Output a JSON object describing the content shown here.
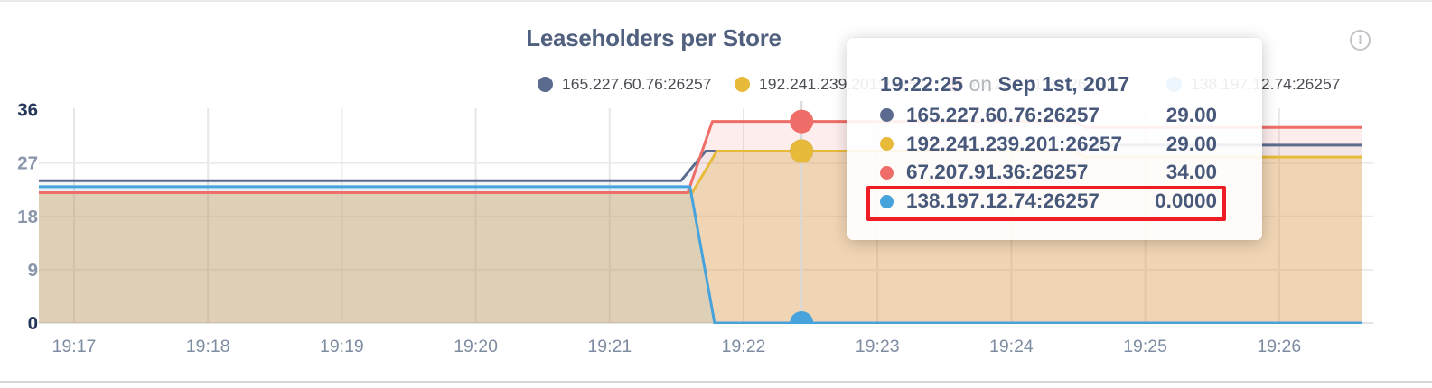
{
  "header": {
    "title": "Leaseholders per Store",
    "info_icon_glyph": "!"
  },
  "legend": {
    "items": [
      {
        "label": "165.227.60.76:26257",
        "color": "#5b6b8f"
      },
      {
        "label": "192.241.239.201:26257",
        "color": "#e8ba3a"
      },
      {
        "label": "67.207.91.36:26257",
        "color": "#ee6d68"
      },
      {
        "label": "138.197.12.74:26257",
        "color": "#47a3dc"
      }
    ]
  },
  "tooltip": {
    "time": "19:22:25",
    "on_word": "on",
    "date": "Sep 1st, 2017",
    "rows": [
      {
        "label": "165.227.60.76:26257",
        "value": "29.00",
        "color": "#5b6b8f",
        "highlighted": false
      },
      {
        "label": "192.241.239.201:26257",
        "value": "29.00",
        "color": "#e8ba3a",
        "highlighted": false
      },
      {
        "label": "67.207.91.36:26257",
        "value": "34.00",
        "color": "#ee6d68",
        "highlighted": false
      },
      {
        "label": "138.197.12.74:26257",
        "value": "0.0000",
        "color": "#47a3dc",
        "highlighted": true
      }
    ]
  },
  "chart_data": {
    "type": "area",
    "title": "Leaseholders per Store",
    "xlabel": "",
    "ylabel": "",
    "ylim": [
      0,
      36
    ],
    "y_ticks": [
      36,
      27,
      18,
      9,
      0
    ],
    "y_tick_dark": [
      36,
      0
    ],
    "x_ticks": [
      {
        "t": 0,
        "label": "19:17"
      },
      {
        "t": 60,
        "label": "19:18"
      },
      {
        "t": 120,
        "label": "19:19"
      },
      {
        "t": 180,
        "label": "19:20"
      },
      {
        "t": 240,
        "label": "19:21"
      },
      {
        "t": 300,
        "label": "19:22"
      },
      {
        "t": 360,
        "label": "19:23"
      },
      {
        "t": 420,
        "label": "19:24"
      },
      {
        "t": 480,
        "label": "19:25"
      },
      {
        "t": 540,
        "label": "19:26"
      }
    ],
    "t_range": [
      -16,
      577
    ],
    "grid": true,
    "legend_position": "top",
    "series": [
      {
        "name": "165.227.60.76:26257",
        "color": "#5b6b8f",
        "fill_opacity": 0.06,
        "points": [
          [
            -16,
            24
          ],
          [
            272,
            24
          ],
          [
            283,
            29
          ],
          [
            448,
            29
          ],
          [
            453,
            30
          ],
          [
            577,
            30
          ]
        ]
      },
      {
        "name": "192.241.239.201:26257",
        "color": "#e8ba3a",
        "fill_opacity": 0.3,
        "points": [
          [
            -16,
            22
          ],
          [
            277,
            22
          ],
          [
            288,
            29
          ],
          [
            448,
            29
          ],
          [
            453,
            28
          ],
          [
            577,
            28
          ]
        ]
      },
      {
        "name": "67.207.91.36:26257",
        "color": "#ee6d68",
        "fill_opacity": 0.12,
        "points": [
          [
            -16,
            22
          ],
          [
            275,
            22
          ],
          [
            286,
            34
          ],
          [
            448,
            34
          ],
          [
            453,
            33
          ],
          [
            577,
            33
          ]
        ]
      },
      {
        "name": "138.197.12.74:26257",
        "color": "#47a3dc",
        "fill_opacity": 0.1,
        "points": [
          [
            -16,
            23
          ],
          [
            276,
            23
          ],
          [
            287,
            0
          ],
          [
            577,
            0
          ]
        ]
      }
    ],
    "hover": {
      "t": 326,
      "time_label": "19:22:25",
      "markers": [
        {
          "series": "165.227.60.76:26257",
          "value": 29,
          "color": "#5b6b8f"
        },
        {
          "series": "192.241.239.201:26257",
          "value": 29,
          "color": "#e8ba3a"
        },
        {
          "series": "67.207.91.36:26257",
          "value": 34,
          "color": "#ee6d68"
        },
        {
          "series": "138.197.12.74:26257",
          "value": 0,
          "color": "#47a3dc"
        }
      ]
    }
  }
}
